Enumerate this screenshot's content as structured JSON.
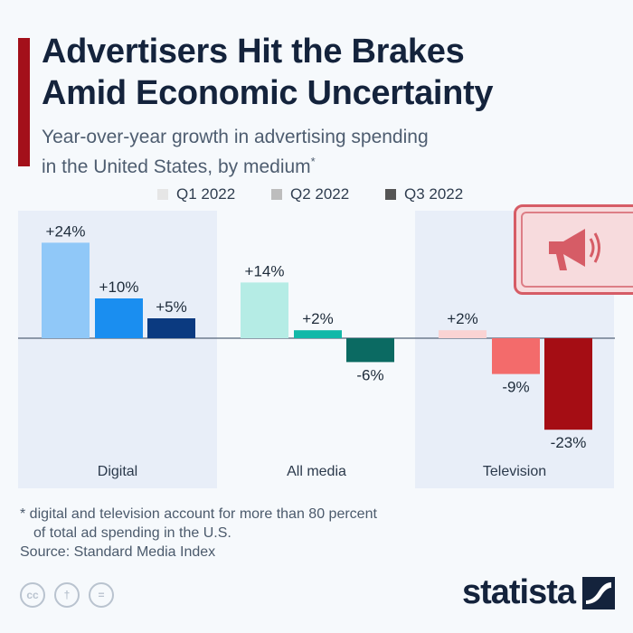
{
  "header": {
    "title_lines": [
      "Advertisers Hit the Brakes",
      "Amid Economic Uncertainty"
    ],
    "subtitle_lines": [
      "Year-over-year growth in advertising spending",
      "in the United States, by medium"
    ],
    "subtitle_marker": "*"
  },
  "legend": [
    {
      "label": "Q1 2022",
      "color": "#e6e6e6"
    },
    {
      "label": "Q2 2022",
      "color": "#bdbdbd"
    },
    {
      "label": "Q3 2022",
      "color": "#555555"
    }
  ],
  "chart_data": {
    "type": "bar",
    "categories": [
      "Digital",
      "All media",
      "Television"
    ],
    "series": [
      {
        "name": "Q1 2022",
        "values": [
          24,
          14,
          2
        ]
      },
      {
        "name": "Q2 2022",
        "values": [
          10,
          2,
          -9
        ]
      },
      {
        "name": "Q3 2022",
        "values": [
          5,
          -6,
          -23
        ]
      }
    ],
    "data_labels": [
      [
        "+24%",
        "+10%",
        "+5%"
      ],
      [
        "+14%",
        "+2%",
        "-6%"
      ],
      [
        "+2%",
        "-9%",
        "-23%"
      ]
    ],
    "bar_colors": [
      [
        "#90c8f8",
        "#1a8ef0",
        "#0b3a80"
      ],
      [
        "#b5ece5",
        "#12b8a8",
        "#0b6a62"
      ],
      [
        "#fad3d3",
        "#f36b6b",
        "#a50d14"
      ]
    ],
    "panel_shading": [
      true,
      false,
      true
    ],
    "ylim": [
      -25,
      28
    ],
    "unit": "%"
  },
  "footer": {
    "footnote_lines": [
      "* digital and television account for more than 80 percent",
      "of total ad spending in the U.S."
    ],
    "source": "Source: Standard Media Index",
    "license_icons": [
      {
        "icon": "cc-icon",
        "glyph": "cc"
      },
      {
        "icon": "person-icon",
        "glyph": "†"
      },
      {
        "icon": "equals-icon",
        "glyph": "="
      }
    ],
    "brand": "statista"
  },
  "badge": {
    "icon": "megaphone-icon",
    "color": "#d65c66"
  }
}
